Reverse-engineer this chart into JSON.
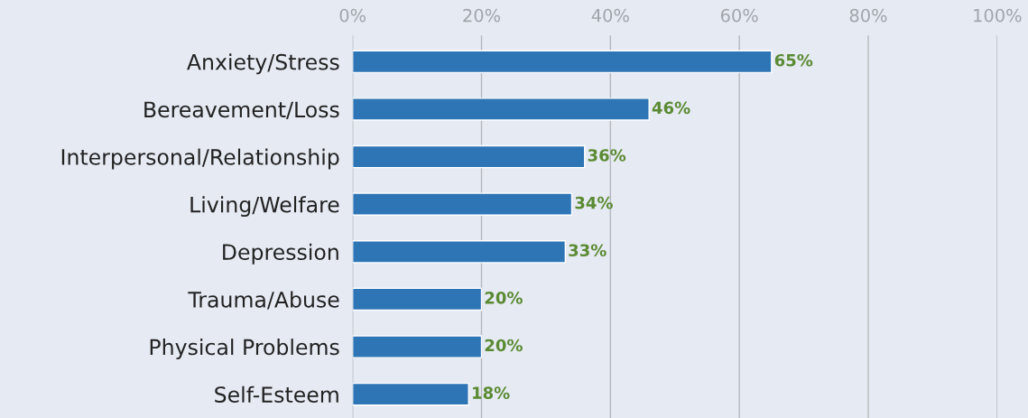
{
  "chart_data": {
    "type": "bar",
    "orientation": "horizontal",
    "categories": [
      "Anxiety/Stress",
      "Bereavement/Loss",
      "Interpersonal/Relationship",
      "Living/Welfare",
      "Depression",
      "Trauma/Abuse",
      "Physical Problems",
      "Self-Esteem"
    ],
    "values": [
      65,
      46,
      36,
      34,
      33,
      20,
      20,
      18
    ],
    "value_labels": [
      "65%",
      "46%",
      "36%",
      "34%",
      "33%",
      "20%",
      "20%",
      "18%"
    ],
    "color": "#2e75b6",
    "xlim": [
      0,
      100
    ],
    "xticks": [
      {
        "value": 0,
        "label": "0%"
      },
      {
        "value": 20,
        "label": "20%"
      },
      {
        "value": 40,
        "label": "40%"
      },
      {
        "value": 60,
        "label": "60%"
      },
      {
        "value": 80,
        "label": "80%"
      },
      {
        "value": 100,
        "label": "100%"
      }
    ],
    "grid": "x"
  }
}
